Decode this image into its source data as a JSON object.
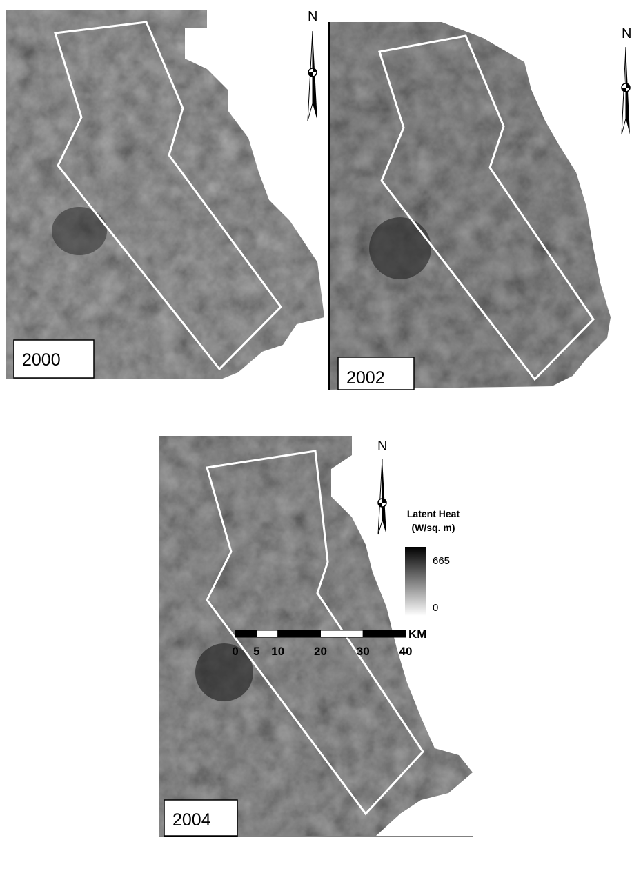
{
  "panels": [
    {
      "year": "2000",
      "north": "N"
    },
    {
      "year": "2002",
      "north": "N"
    },
    {
      "year": "2004",
      "north": "N"
    }
  ],
  "legend": {
    "title_line1": "Latent Heat",
    "title_line2": "(W/sq. m)",
    "max": 665,
    "min": 0
  },
  "scale_bar": {
    "unit": "KM",
    "ticks": [
      0,
      5,
      10,
      20,
      30,
      40
    ]
  }
}
